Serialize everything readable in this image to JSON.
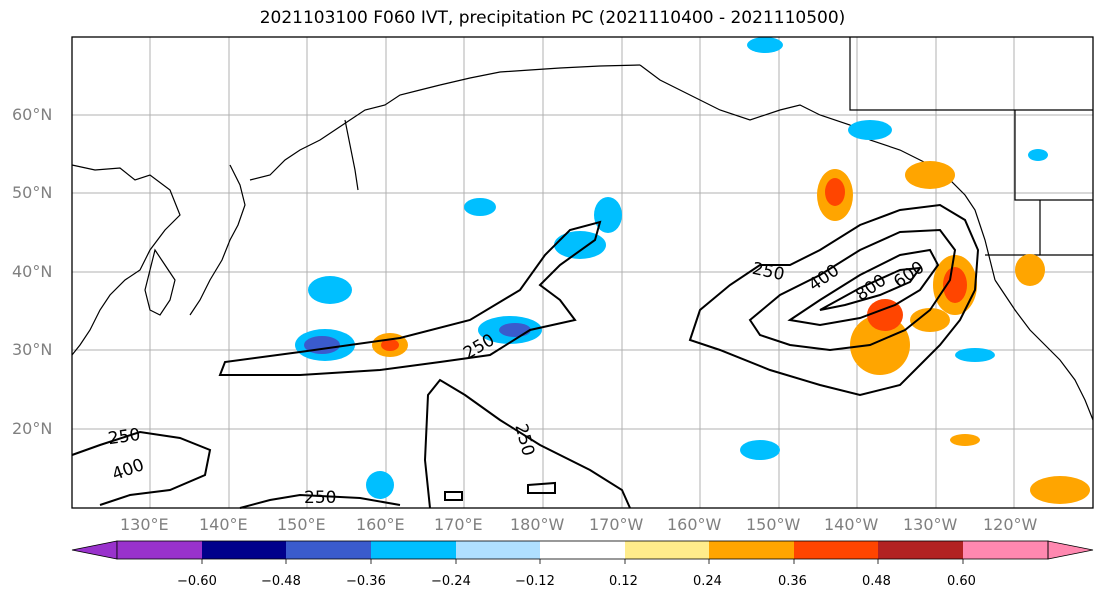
{
  "title": "2021103100 F060 IVT, precipitation PC (2021110400 - 2021110500)",
  "lat_labels": [
    "60°N",
    "50°N",
    "40°N",
    "30°N",
    "20°N"
  ],
  "lon_labels": [
    "130°E",
    "140°E",
    "150°E",
    "160°E",
    "170°E",
    "180°W",
    "170°W",
    "160°W",
    "150°W",
    "140°W",
    "130°W",
    "120°W"
  ],
  "contour_labels": [
    "250",
    "400",
    "600",
    "800",
    "250",
    "250",
    "250",
    "250",
    "400"
  ],
  "colorbar": {
    "ticks": [
      "−0.60",
      "−0.48",
      "−0.36",
      "−0.24",
      "−0.12",
      "0.12",
      "0.24",
      "0.36",
      "0.48",
      "0.60"
    ],
    "colors": [
      "#9932cc",
      "#00008b",
      "#3a5bcd",
      "#00bfff",
      "#b0e0ff",
      "#ffffff",
      "#ffec8b",
      "#ffa500",
      "#ff4500",
      "#b22222",
      "#ff88b0"
    ]
  }
}
